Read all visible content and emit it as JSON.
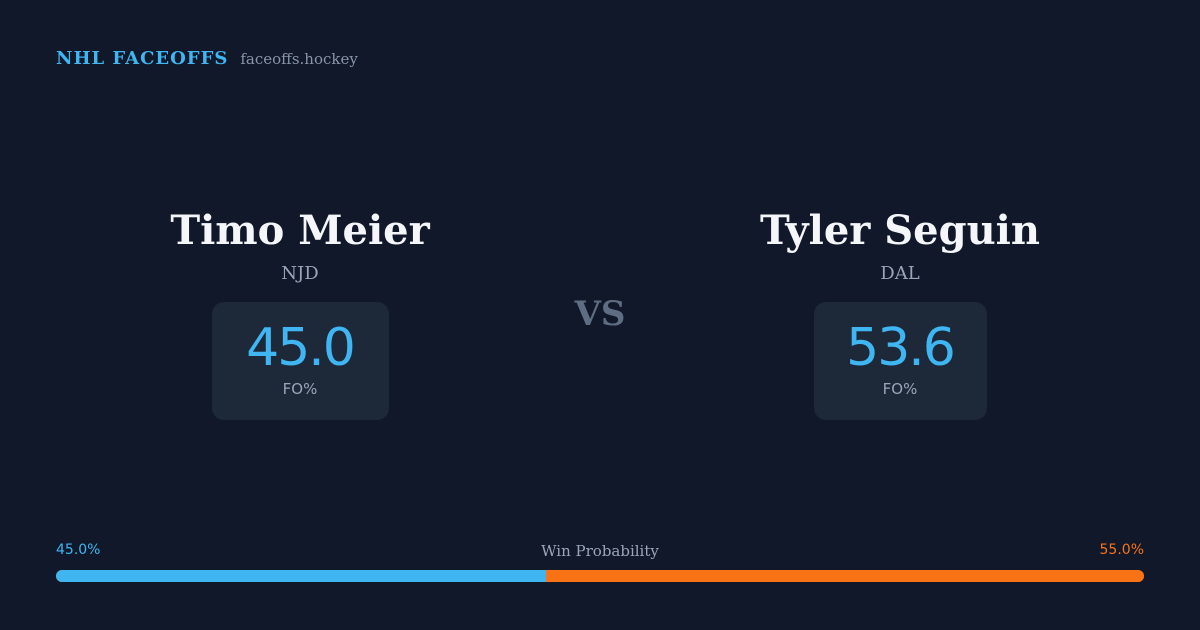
{
  "brand": {
    "name": "NHL FACEOFFS",
    "url": "faceoffs.hockey",
    "accent_color": "#3fb6f2"
  },
  "matchup": {
    "left": {
      "name": "Timo Meier",
      "team": "NJD",
      "stat_value": "45.0",
      "stat_label": "FO%"
    },
    "vs_label": "VS",
    "right": {
      "name": "Tyler Seguin",
      "team": "DAL",
      "stat_value": "53.6",
      "stat_label": "FO%"
    }
  },
  "win_probability": {
    "label": "Win Probability",
    "left_text": "45.0%",
    "right_text": "55.0%",
    "left_fraction": 0.45,
    "left_color": "#3fb6f2",
    "right_color": "#f97316"
  }
}
